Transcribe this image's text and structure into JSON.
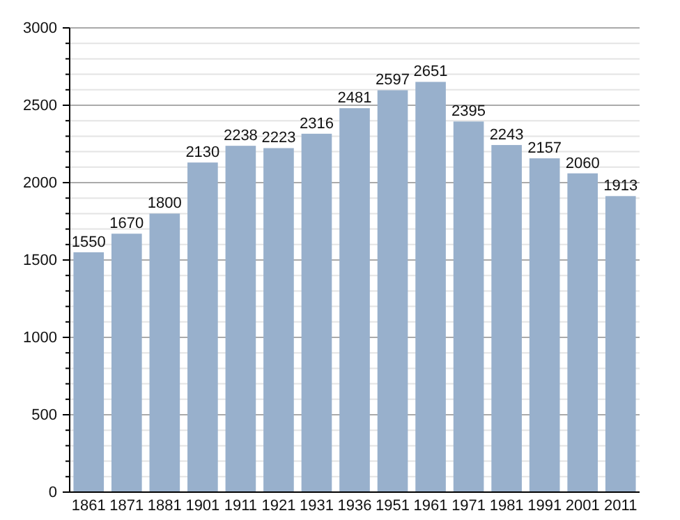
{
  "chart_data": {
    "type": "bar",
    "categories": [
      "1861",
      "1871",
      "1881",
      "1901",
      "1911",
      "1921",
      "1931",
      "1936",
      "1951",
      "1961",
      "1971",
      "1981",
      "1991",
      "2001",
      "2011"
    ],
    "values": [
      1550,
      1670,
      1800,
      2130,
      2238,
      2223,
      2316,
      2481,
      2597,
      2651,
      2395,
      2243,
      2157,
      2060,
      1913
    ],
    "color": "#98b0cc",
    "ylim": [
      0,
      3000
    ],
    "yticks": [
      0,
      {
        "value": 100,
        "label": null
      },
      {
        "value": 200,
        "label": null
      },
      {
        "value": 300,
        "label": null
      },
      {
        "value": 400,
        "label": null
      },
      500,
      {
        "value": 600,
        "label": null
      },
      {
        "value": 700,
        "label": null
      },
      {
        "value": 800,
        "label": null
      },
      {
        "value": 900,
        "label": null
      },
      1000,
      {
        "value": 1100,
        "label": null
      },
      {
        "value": 1200,
        "label": null
      },
      {
        "value": 1300,
        "label": null
      },
      {
        "value": 1400,
        "label": null
      },
      1500,
      {
        "value": 1600,
        "label": null
      },
      {
        "value": 1700,
        "label": null
      },
      {
        "value": 1800,
        "label": null
      },
      {
        "value": 1900,
        "label": null
      },
      2000,
      {
        "value": 2100,
        "label": null
      },
      {
        "value": 2200,
        "label": null
      },
      {
        "value": 2300,
        "label": null
      },
      {
        "value": 2400,
        "label": null
      },
      2500,
      {
        "value": 2600,
        "label": null
      },
      {
        "value": 2700,
        "label": null
      },
      {
        "value": 2800,
        "label": null
      },
      {
        "value": 2900,
        "label": null
      },
      3000
    ],
    "grid": true,
    "data_labels": true
  }
}
